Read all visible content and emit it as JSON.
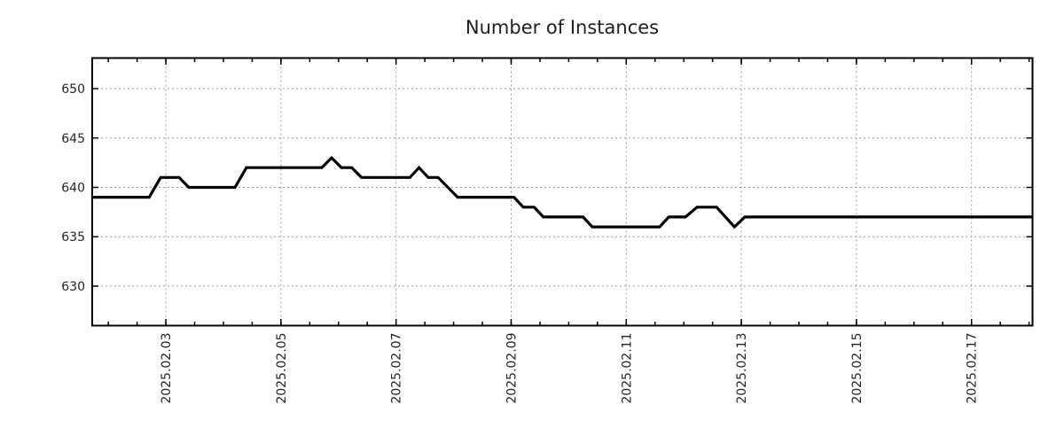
{
  "chart_data": {
    "type": "line",
    "title": "Number of Instances",
    "x_axis": {
      "tick_labels": [
        "2025.02.03",
        "2025.02.05",
        "2025.02.07",
        "2025.02.09",
        "2025.02.11",
        "2025.02.13",
        "2025.02.15",
        "2025.02.17"
      ],
      "tick_days": [
        3,
        5,
        7,
        9,
        11,
        13,
        15,
        17
      ],
      "minor_tick_start_day": 2.0,
      "minor_tick_end_day": 18.0,
      "minor_tick_step_days": 0.5,
      "range_days": [
        1.72,
        18.06
      ]
    },
    "y_axis": {
      "ticks": [
        630,
        635,
        640,
        645,
        650
      ],
      "range": [
        626.0,
        653.1
      ]
    },
    "series": [
      {
        "color": "#000000",
        "points": [
          [
            1.72,
            639
          ],
          [
            2.71,
            639
          ],
          [
            2.91,
            641
          ],
          [
            3.23,
            641
          ],
          [
            3.4,
            640
          ],
          [
            4.2,
            640
          ],
          [
            4.4,
            642
          ],
          [
            5.71,
            642
          ],
          [
            5.88,
            643
          ],
          [
            6.05,
            642
          ],
          [
            6.23,
            642
          ],
          [
            6.4,
            641
          ],
          [
            7.24,
            641
          ],
          [
            7.4,
            642
          ],
          [
            7.56,
            641
          ],
          [
            7.73,
            641
          ],
          [
            8.07,
            639
          ],
          [
            9.05,
            639
          ],
          [
            9.21,
            638
          ],
          [
            9.4,
            638
          ],
          [
            9.56,
            637
          ],
          [
            10.25,
            637
          ],
          [
            10.41,
            636
          ],
          [
            11.58,
            636
          ],
          [
            11.74,
            637
          ],
          [
            12.03,
            637
          ],
          [
            12.23,
            638
          ],
          [
            12.57,
            638
          ],
          [
            12.88,
            636
          ],
          [
            13.06,
            637
          ],
          [
            18.06,
            637
          ]
        ]
      }
    ],
    "grid": {
      "show": true,
      "color": "#9e9e9e",
      "style": "dotted"
    },
    "colors": {
      "line": "#000000",
      "axis": "#000000",
      "text": "#262626",
      "title_text": "#1f1f1f",
      "background": "#ffffff"
    },
    "legend": {
      "visible": false
    }
  }
}
